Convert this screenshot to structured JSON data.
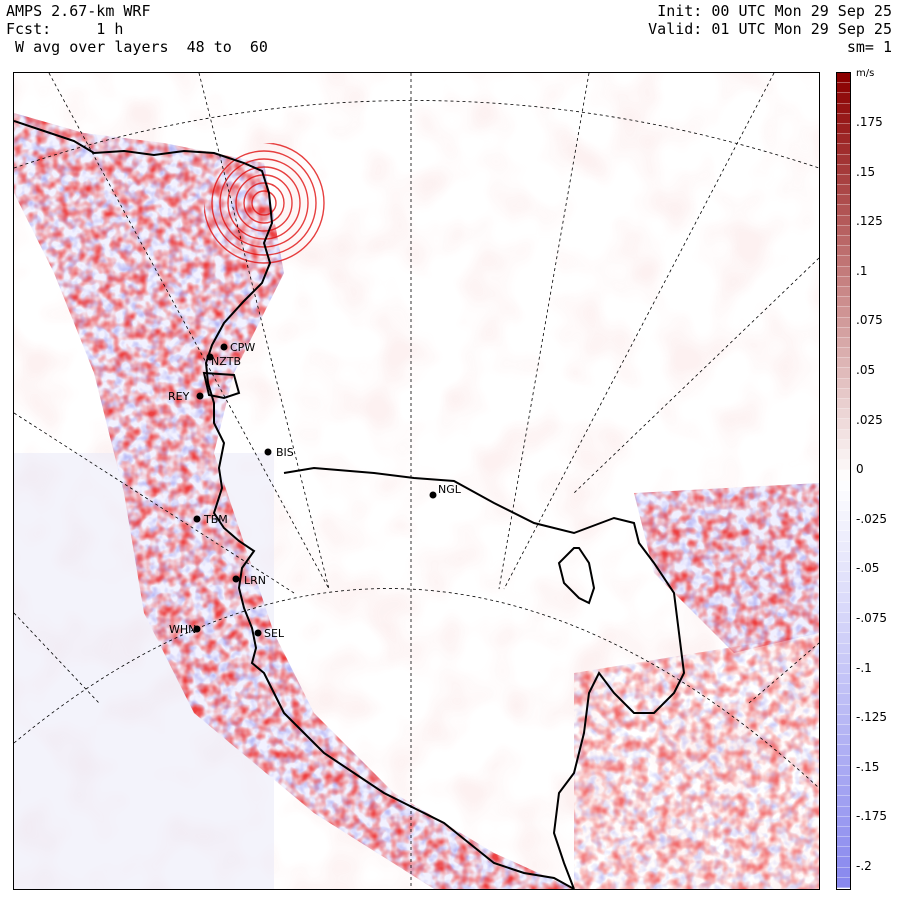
{
  "header": {
    "line1_left": "AMPS 2.67-km WRF",
    "line2_left": "Fcst:     1 h",
    "line3_left": " W avg over layers  48 to  60",
    "line1_right": "Init: 00 UTC Mon 29 Sep 25",
    "line2_right": "Valid: 01 UTC Mon 29 Sep 25",
    "line3_right": "sm= 1"
  },
  "colorbar": {
    "unit": "m/s",
    "ticks": [
      ".175",
      ".15",
      ".125",
      ".1",
      ".075",
      ".05",
      ".025",
      "0",
      "-.025",
      "-.05",
      "-.075",
      "-.1",
      "-.125",
      "-.15",
      "-.175",
      "-.2"
    ],
    "positive_color": "#8b0000",
    "negative_color": "#8888ee"
  },
  "stations": [
    {
      "name": "CPW"
    },
    {
      "name": "NZTB"
    },
    {
      "name": "REY"
    },
    {
      "name": "BIS"
    },
    {
      "name": "NGL"
    },
    {
      "name": "TBM"
    },
    {
      "name": "LRN"
    },
    {
      "name": "WHN"
    },
    {
      "name": "SEL"
    }
  ]
}
